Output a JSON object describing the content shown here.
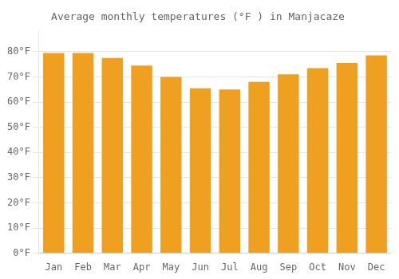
{
  "chart_data": {
    "type": "bar",
    "title": "Average monthly temperatures (°F ) in Manjacaze",
    "categories": [
      "Jan",
      "Feb",
      "Mar",
      "Apr",
      "May",
      "Jun",
      "Jul",
      "Aug",
      "Sep",
      "Oct",
      "Nov",
      "Dec"
    ],
    "values": [
      79.5,
      79.5,
      77.5,
      74.5,
      70.0,
      65.5,
      65.0,
      68.0,
      71.0,
      73.5,
      75.5,
      78.5
    ],
    "color": "#F0A020",
    "ylim": [
      0,
      88
    ],
    "yticks": [
      {
        "value": 0,
        "label": "0°F"
      },
      {
        "value": 10,
        "label": "10°F"
      },
      {
        "value": 20,
        "label": "20°F"
      },
      {
        "value": 30,
        "label": "30°F"
      },
      {
        "value": 40,
        "label": "40°F"
      },
      {
        "value": 50,
        "label": "50°F"
      },
      {
        "value": 60,
        "label": "60°F"
      },
      {
        "value": 70,
        "label": "70°F"
      },
      {
        "value": 80,
        "label": "80°F"
      }
    ],
    "grid": true
  }
}
